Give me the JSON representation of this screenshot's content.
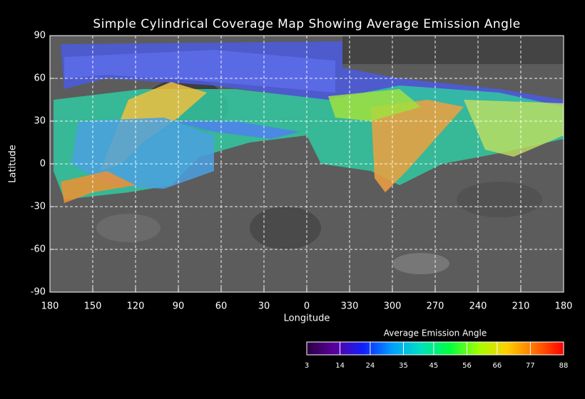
{
  "chart_data": {
    "type": "map",
    "title": "Simple Cylindrical Coverage Map Showing Average Emission Angle",
    "xlabel": "Longitude",
    "ylabel": "Latitude",
    "xlim": [
      180,
      -180
    ],
    "xticks": [
      180,
      150,
      120,
      90,
      60,
      30,
      0,
      {
        "value": -30,
        "label": "330"
      },
      {
        "value": -60,
        "label": "300"
      },
      {
        "value": -90,
        "label": "270"
      },
      {
        "value": -120,
        "label": "240"
      },
      {
        "value": -150,
        "label": "210"
      },
      {
        "value": -180,
        "label": "180"
      }
    ],
    "ylim": [
      -90,
      90
    ],
    "yticks": [
      90,
      60,
      30,
      0,
      -30,
      -60,
      -90
    ],
    "grid": true,
    "colorbar": {
      "label": "Average Emission Angle",
      "lim": [
        3,
        88
      ],
      "ticks": [
        3,
        14,
        24,
        35,
        45,
        56,
        66,
        77,
        88
      ],
      "colors": [
        "#2a0040",
        "#5a00a0",
        "#1020ff",
        "#00a0ff",
        "#00e0c0",
        "#00ff40",
        "#a0ff00",
        "#ffd000",
        "#ff7000",
        "#ff0000"
      ]
    }
  }
}
